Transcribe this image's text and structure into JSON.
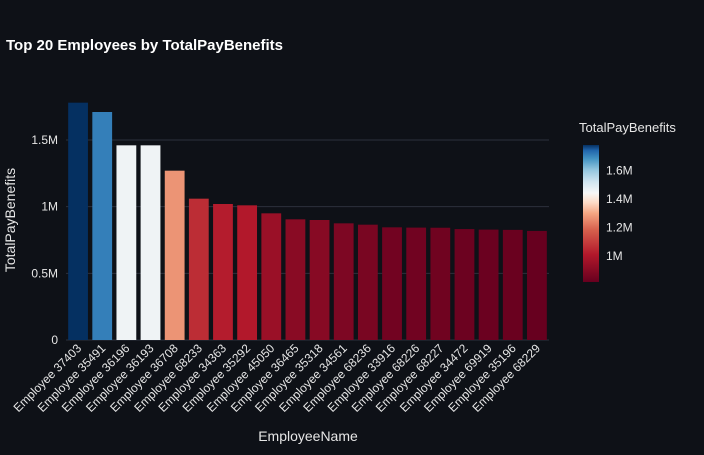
{
  "chart_data": {
    "type": "bar",
    "title": "Top 20 Employees by TotalPayBenefits",
    "xlabel": "EmployeeName",
    "ylabel": "TotalPayBenefits",
    "categories": [
      "Employee 37403",
      "Employee 35491",
      "Employee 36196",
      "Employee 36193",
      "Employee 36708",
      "Employee 68233",
      "Employee 34363",
      "Employee 35292",
      "Employee 45050",
      "Employee 36465",
      "Employee 35318",
      "Employee 34561",
      "Employee 68236",
      "Employee 33916",
      "Employee 68226",
      "Employee 68227",
      "Employee 34472",
      "Employee 69919",
      "Employee 35196",
      "Employee 68229"
    ],
    "values": [
      1780000,
      1710000,
      1460000,
      1460000,
      1270000,
      1060000,
      1020000,
      1010000,
      950000,
      905000,
      900000,
      875000,
      865000,
      845000,
      843000,
      842000,
      832000,
      828000,
      826000,
      818000
    ],
    "ylim": [
      0,
      1800000
    ],
    "yticks": [
      {
        "value": 0,
        "label": "0"
      },
      {
        "value": 500000,
        "label": "0.5M"
      },
      {
        "value": 1000000,
        "label": "1M"
      },
      {
        "value": 1500000,
        "label": "1.5M"
      }
    ],
    "grid": true,
    "colorscale": "RdBu",
    "colorbar": {
      "title": "TotalPayBenefits",
      "range": [
        818000,
        1780000
      ],
      "ticks": [
        {
          "value": 1000000,
          "label": "1M"
        },
        {
          "value": 1200000,
          "label": "1.2M"
        },
        {
          "value": 1400000,
          "label": "1.4M"
        },
        {
          "value": 1600000,
          "label": "1.6M"
        }
      ]
    }
  }
}
